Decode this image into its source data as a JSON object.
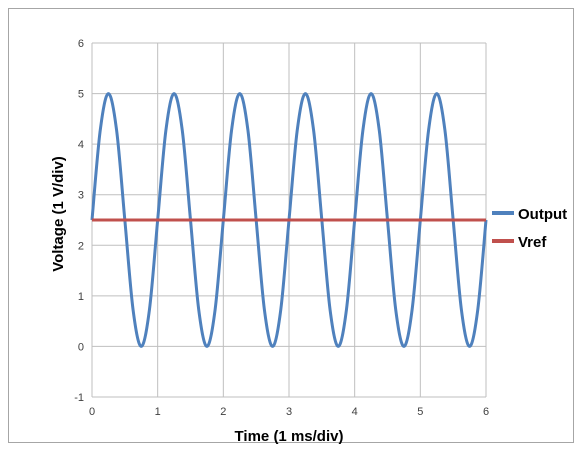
{
  "chart_data": {
    "type": "line",
    "title": "",
    "xlabel": "Time (1 ms/div)",
    "ylabel": "Voltage (1 V/div)",
    "xlim": [
      0,
      6
    ],
    "ylim": [
      -1,
      6
    ],
    "x_ticks": [
      "0",
      "1",
      "2",
      "3",
      "4",
      "5",
      "6"
    ],
    "y_ticks": [
      "-1",
      "0",
      "1",
      "2",
      "3",
      "4",
      "5",
      "6"
    ],
    "grid": true,
    "legend_position": "right",
    "series": [
      {
        "name": "Output",
        "color": "#4f81bd",
        "x": [
          0,
          0.125,
          0.25,
          0.375,
          0.5,
          0.625,
          0.75,
          0.875,
          1,
          1.125,
          1.25,
          1.375,
          1.5,
          1.625,
          1.75,
          1.875,
          2,
          2.125,
          2.25,
          2.375,
          2.5,
          2.625,
          2.75,
          2.875,
          3,
          3.125,
          3.25,
          3.375,
          3.5,
          3.625,
          3.75,
          3.875,
          4,
          4.125,
          4.25,
          4.375,
          4.5,
          4.625,
          4.75,
          4.875,
          5,
          5.125,
          5.25,
          5.375,
          5.5,
          5.625,
          5.75,
          5.875,
          6
        ],
        "y": [
          2.5,
          4.27,
          5,
          4.27,
          2.5,
          0.73,
          0,
          0.73,
          2.5,
          4.27,
          5,
          4.27,
          2.5,
          0.73,
          0,
          0.73,
          2.5,
          4.27,
          5,
          4.27,
          2.5,
          0.73,
          0,
          0.73,
          2.5,
          4.27,
          5,
          4.27,
          2.5,
          0.73,
          0,
          0.73,
          2.5,
          4.27,
          5,
          4.27,
          2.5,
          0.73,
          0,
          0.73,
          2.5,
          4.27,
          5,
          4.27,
          2.5,
          0.73,
          0,
          0.73,
          2.5
        ]
      },
      {
        "name": "Vref",
        "color": "#c0504d",
        "x": [
          0,
          6
        ],
        "y": [
          2.5,
          2.5
        ]
      }
    ]
  }
}
